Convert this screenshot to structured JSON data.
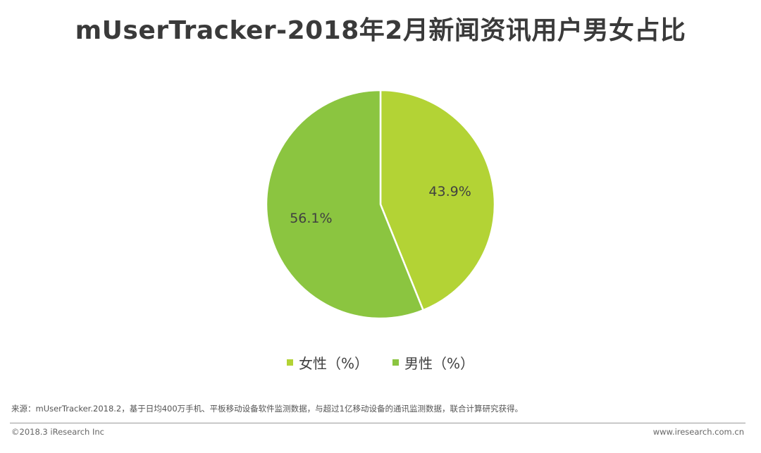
{
  "title": "mUserTracker-2018年2月新闻资讯用户男女占比",
  "chart_data": {
    "type": "pie",
    "title": "mUserTracker-2018年2月新闻资讯用户男女占比",
    "slices": [
      {
        "label": "女性（%）",
        "value": 43.9,
        "display": "43.9%",
        "color": "#b3d335"
      },
      {
        "label": "男性（%）",
        "value": 56.1,
        "display": "56.1%",
        "color": "#8bc540"
      }
    ],
    "legend_position": "bottom",
    "start": "top, clockwise"
  },
  "source_note": "来源：mUserTracker.2018.2，基于日均400万手机、平板移动设备软件监测数据，与超过1亿移动设备的通讯监测数据，联合计算研究获得。",
  "footer": {
    "copyright": "©2018.3 iResearch Inc",
    "website": "www.iresearch.com.cn"
  }
}
